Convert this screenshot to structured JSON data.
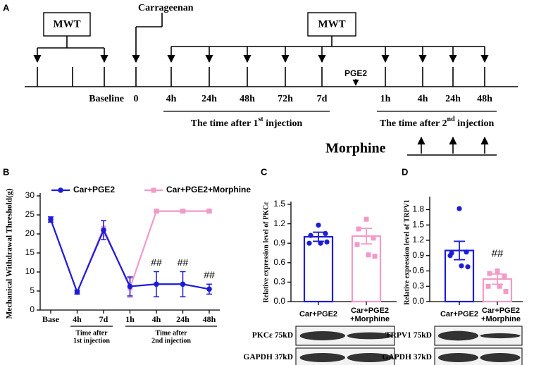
{
  "timeline": {
    "label": "A",
    "boxes": [
      "MWT",
      "MWT"
    ],
    "event": "Carrageenan",
    "second_event": "PGE2",
    "ticks": [
      "Baseline",
      "0",
      "4h",
      "24h",
      "48h",
      "72h",
      "7d",
      "1h",
      "4h",
      "24h",
      "48h"
    ],
    "periods": [
      {
        "text": "The time after 1",
        "sup": "st",
        "rest": " injection"
      },
      {
        "text": "The time after 2",
        "sup": "nd",
        "rest": " injection"
      }
    ],
    "treatment": "Morphine"
  },
  "chart_data": [
    {
      "type": "line",
      "label": "B",
      "ylabel": "Mechanical Withdrawal Threshold(g)",
      "categories": [
        "Base",
        "4h",
        "7d",
        "1h",
        "4h",
        "24h",
        "48h"
      ],
      "ylim": [
        0,
        30
      ],
      "yticks": [
        0,
        5,
        10,
        15,
        20,
        25,
        30
      ],
      "series": [
        {
          "name": "Car+PGE2",
          "color": "#1c1cd8",
          "marker": "circle",
          "values": [
            23.8,
            4.7,
            21,
            6.2,
            6.8,
            6.8,
            5.5
          ],
          "errors": [
            0.7,
            0.5,
            2.5,
            2.5,
            3.3,
            3.3,
            1.3
          ]
        },
        {
          "name": "Car+PGE2+Morphine",
          "color": "#f29ac8",
          "marker": "square",
          "values": [
            23.8,
            4.7,
            21.5,
            5.8,
            26,
            26,
            26
          ],
          "errors": [
            0.7,
            0.5,
            2,
            2.5,
            0.3,
            0.3,
            0.3
          ]
        }
      ],
      "annotations": [
        "##",
        "##",
        "##"
      ],
      "groups": [
        [
          "Time after",
          "1st injection"
        ],
        [
          "Time after",
          "2nd injection"
        ]
      ]
    },
    {
      "type": "bar",
      "label": "C",
      "ylabel": "Relative expression level of PKCε",
      "categories": [
        [
          "Car+PGE2"
        ],
        [
          "Car+PGE2",
          "+Morphine"
        ]
      ],
      "colors": [
        "#1c1cd8",
        "#f29ac8"
      ],
      "values": [
        1.0,
        1.01
      ],
      "errors": [
        0.07,
        0.12
      ],
      "points": [
        [
          1.18,
          1.02,
          1.05,
          0.9,
          0.9,
          0.92
        ],
        [
          1.27,
          1.12,
          0.98,
          0.88,
          0.72,
          0.7
        ]
      ],
      "ylim": [
        0,
        1.5
      ],
      "yticks": [
        {
          "value": 0,
          "label": "0.0"
        },
        0.3,
        0.6,
        0.9,
        1.2,
        1.5
      ],
      "annotations": [],
      "blots": [
        "PKCε 75kD",
        "GAPDH 37kD"
      ]
    },
    {
      "type": "bar",
      "label": "D",
      "ylabel": "Relative expression level of TRPV1",
      "categories": [
        [
          "Car+PGE2"
        ],
        [
          "Car+PGE2",
          "+Morphine"
        ]
      ],
      "colors": [
        "#1c1cd8",
        "#f29ac8"
      ],
      "values": [
        1.0,
        0.44
      ],
      "errors": [
        0.18,
        0.1
      ],
      "points": [
        [
          1.82,
          0.95,
          0.97,
          0.9,
          0.7,
          0.68
        ],
        [
          0.6,
          0.55,
          0.5,
          0.3,
          0.3,
          0.2
        ]
      ],
      "ylim": [
        0,
        2.0
      ],
      "yticks": [
        {
          "value": 0,
          "label": "0.0"
        },
        0.3,
        0.6,
        0.9,
        1.2,
        1.5,
        1.8
      ],
      "annotations": [
        "##"
      ],
      "blots": [
        "TRPV1 75kD",
        "GAPDH 37kD"
      ]
    }
  ]
}
